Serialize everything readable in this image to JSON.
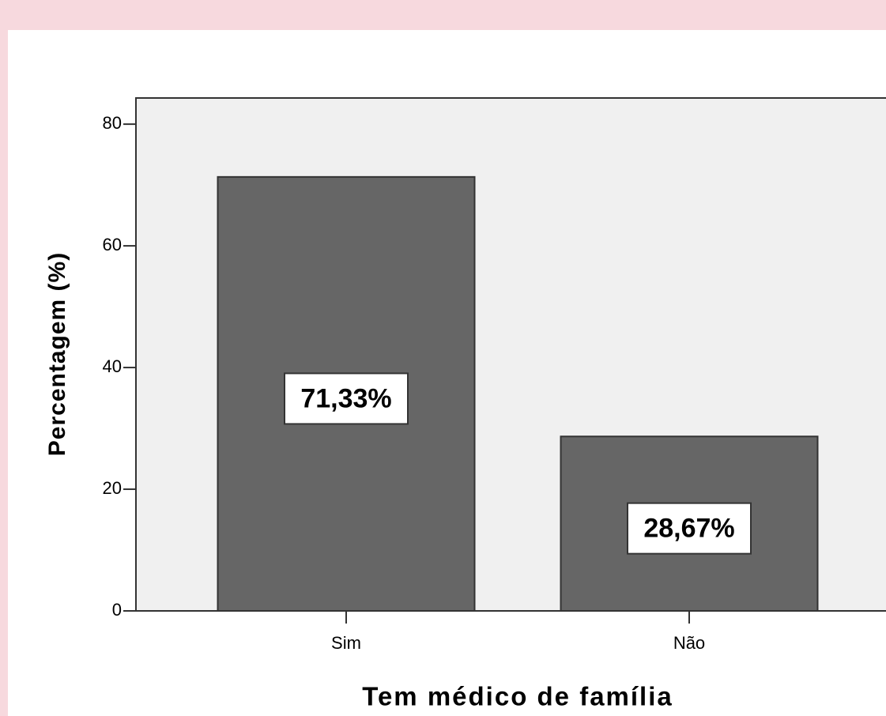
{
  "chart_data": {
    "type": "bar",
    "x_label": "Tem médico de família",
    "y_label": "Percentagem (%)",
    "categories": [
      "Sim",
      "Não"
    ],
    "values": [
      71.33,
      28.67
    ],
    "value_labels": [
      "71,33%",
      "28,67%"
    ],
    "color": "#666666",
    "ylim": [
      0,
      84.3
    ],
    "yticks": [
      0,
      20,
      40,
      60,
      80
    ],
    "grid": false
  }
}
